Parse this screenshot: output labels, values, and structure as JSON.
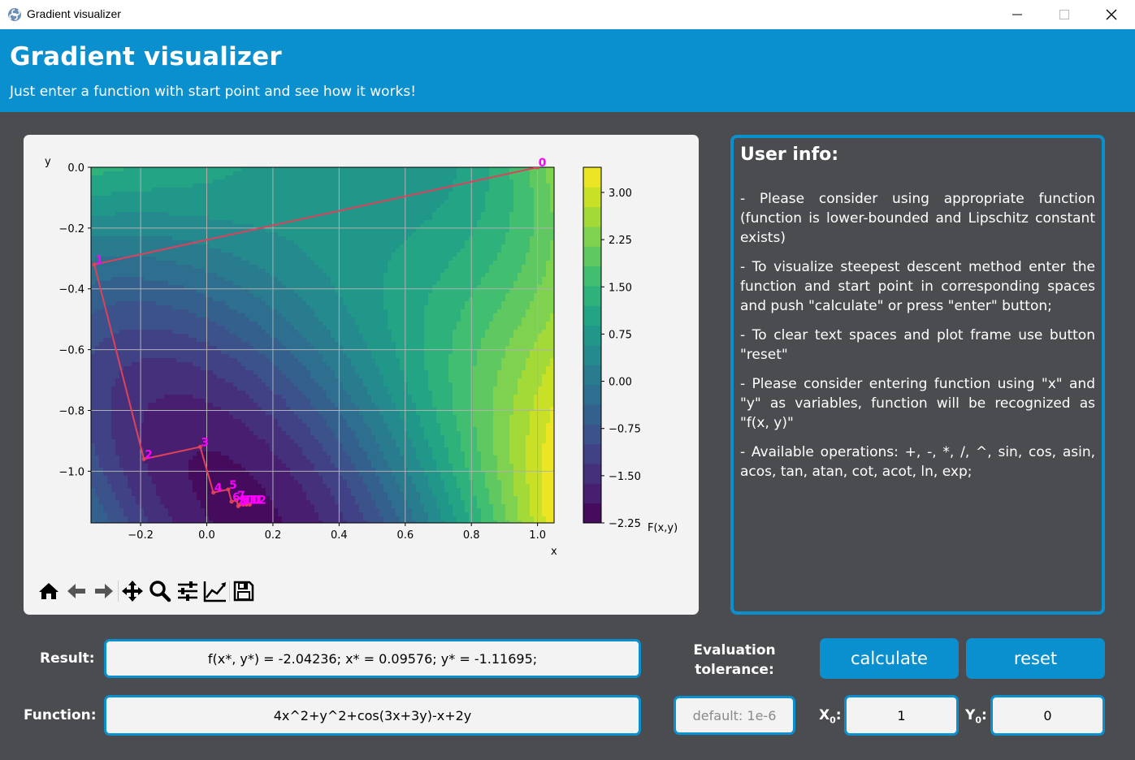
{
  "window": {
    "title": "Gradient visualizer",
    "buttons": [
      "minimize",
      "maximize",
      "close"
    ]
  },
  "header": {
    "title": "Gradient visualizer",
    "subtitle": "Just enter a function with start point and see how it works!"
  },
  "info": {
    "title": "User info:",
    "items": [
      "- Please consider using appropriate function (function is lower-bounded and Lipschitz constant exists)",
      "- To visualize steepest descent method enter the function and start point in corresponding spaces and push \"calculate\" or press \"enter\" button;",
      "- To clear text spaces and plot frame use button \"reset\"",
      "- Please consider entering function using \"x\" and \"y\" as variables, function will be recognized as \"f(x, y)\"",
      "- Available operations: +, -, *, /, ^, sin, cos, asin, acos, tan, atan, cot, acot, ln, exp;"
    ]
  },
  "controls": {
    "result_label": "Result:",
    "result_value": "f(x*, y*) = -2.04236; x* = 0.09576; y* = -1.11695;",
    "function_label": "Function:",
    "function_value": "4x^2+y^2+cos(3x+3y)-x+2y",
    "tolerance_label_1": "Evaluation",
    "tolerance_label_2": "tolerance:",
    "tolerance_placeholder": "default: 1e-6",
    "calculate_label": "calculate",
    "reset_label": "reset",
    "x0_label": "X",
    "x0_sub": "0",
    "x0_value": "1",
    "y0_label": "Y",
    "y0_sub": "0",
    "y0_value": "0"
  },
  "toolbar": [
    "home-icon",
    "back-icon",
    "forward-icon",
    "pan-icon",
    "zoom-icon",
    "configure-subplots-icon",
    "edit-axis-icon",
    "save-icon"
  ],
  "colors": {
    "accent": "#0a8fcf",
    "background": "#4b4c50",
    "path": "#e0405a",
    "point_labels": "#ff00ff"
  },
  "chart_data": {
    "type": "contour",
    "function": "4x^2+y^2+cos(3x+3y)-x+2y",
    "xlabel": "x",
    "ylabel": "y",
    "colorbar_label": "F(x,y)",
    "xlim": [
      -0.35,
      1.05
    ],
    "ylim": [
      -1.17,
      0.0
    ],
    "x_ticks": [
      "−0.2",
      "0.0",
      "0.2",
      "0.4",
      "0.6",
      "0.8",
      "1.0"
    ],
    "y_ticks": [
      "0.0",
      "−0.2",
      "−0.4",
      "−0.6",
      "−0.8",
      "−1.0"
    ],
    "colorbar_ticks": [
      "3.00",
      "2.25",
      "1.50",
      "0.75",
      "0.00",
      "−0.75",
      "−1.50",
      "−2.25"
    ],
    "colorbar_range": [
      -2.25,
      3.4
    ],
    "grid": true,
    "colormap": "viridis",
    "path_points": [
      {
        "label": "0",
        "x": 1.0,
        "y": 0.0
      },
      {
        "label": "1",
        "x": -0.34,
        "y": -0.32
      },
      {
        "label": "2",
        "x": -0.19,
        "y": -0.96
      },
      {
        "label": "3",
        "x": -0.02,
        "y": -0.92
      },
      {
        "label": "4",
        "x": 0.02,
        "y": -1.07
      },
      {
        "label": "5",
        "x": 0.065,
        "y": -1.06
      },
      {
        "label": "6",
        "x": 0.075,
        "y": -1.1
      },
      {
        "label": "7",
        "x": 0.09,
        "y": -1.095
      },
      {
        "label": "8",
        "x": 0.095,
        "y": -1.115
      },
      {
        "label": "9",
        "x": 0.1,
        "y": -1.11
      },
      {
        "label": "10",
        "x": 0.11,
        "y": -1.11
      },
      {
        "label": "11",
        "x": 0.12,
        "y": -1.11
      },
      {
        "label": "12",
        "x": 0.13,
        "y": -1.11
      }
    ]
  }
}
